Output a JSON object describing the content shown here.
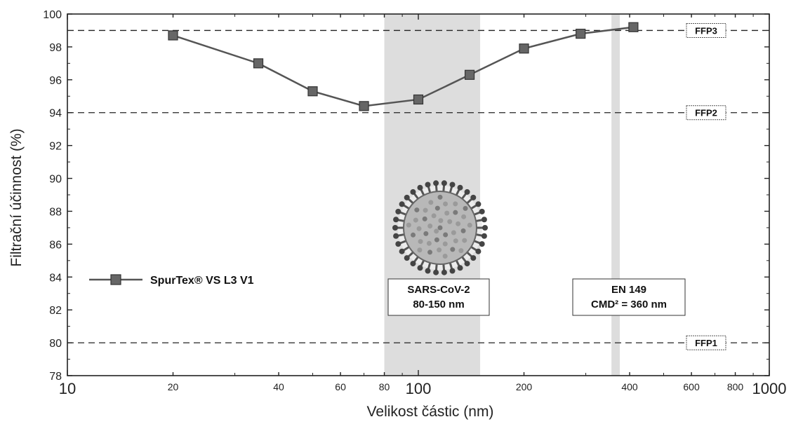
{
  "chart_data": {
    "type": "line",
    "xlabel": "Velikost částic (nm)",
    "ylabel": "Filtrační účinnost (%)",
    "xscale": "log",
    "xlim": [
      10,
      1000
    ],
    "ylim": [
      78,
      100
    ],
    "xticks": [
      10,
      20,
      40,
      60,
      80,
      100,
      200,
      400,
      600,
      800,
      1000
    ],
    "xtick_labels": [
      "10",
      "20",
      "40",
      "60",
      "80",
      "100",
      "200",
      "400",
      "600",
      "800",
      "1000"
    ],
    "yticks": [
      78,
      80,
      82,
      84,
      86,
      88,
      90,
      92,
      94,
      96,
      98,
      100
    ],
    "grid": false,
    "legend_position": "left",
    "series": [
      {
        "name": "SpurTex® VS L3 V1",
        "color": "#666666",
        "marker": "square",
        "x": [
          20,
          35,
          50,
          70,
          100,
          140,
          200,
          290,
          410
        ],
        "y": [
          98.7,
          97.0,
          95.3,
          94.4,
          94.8,
          96.3,
          97.9,
          98.8,
          99.2
        ]
      }
    ],
    "reference_lines": [
      {
        "label": "FFP3",
        "y": 99
      },
      {
        "label": "FFP2",
        "y": 94
      },
      {
        "label": "FFP1",
        "y": 80
      }
    ],
    "shaded_regions": [
      {
        "x_range": [
          80,
          150
        ],
        "label_lines": [
          "SARS-CoV-2",
          "80-150 nm"
        ]
      },
      {
        "x_range": [
          355,
          375
        ],
        "label_lines": [
          "EN 149",
          "CMD² = 360 nm"
        ]
      }
    ],
    "annotation_icon": "coronavirus-icon"
  }
}
